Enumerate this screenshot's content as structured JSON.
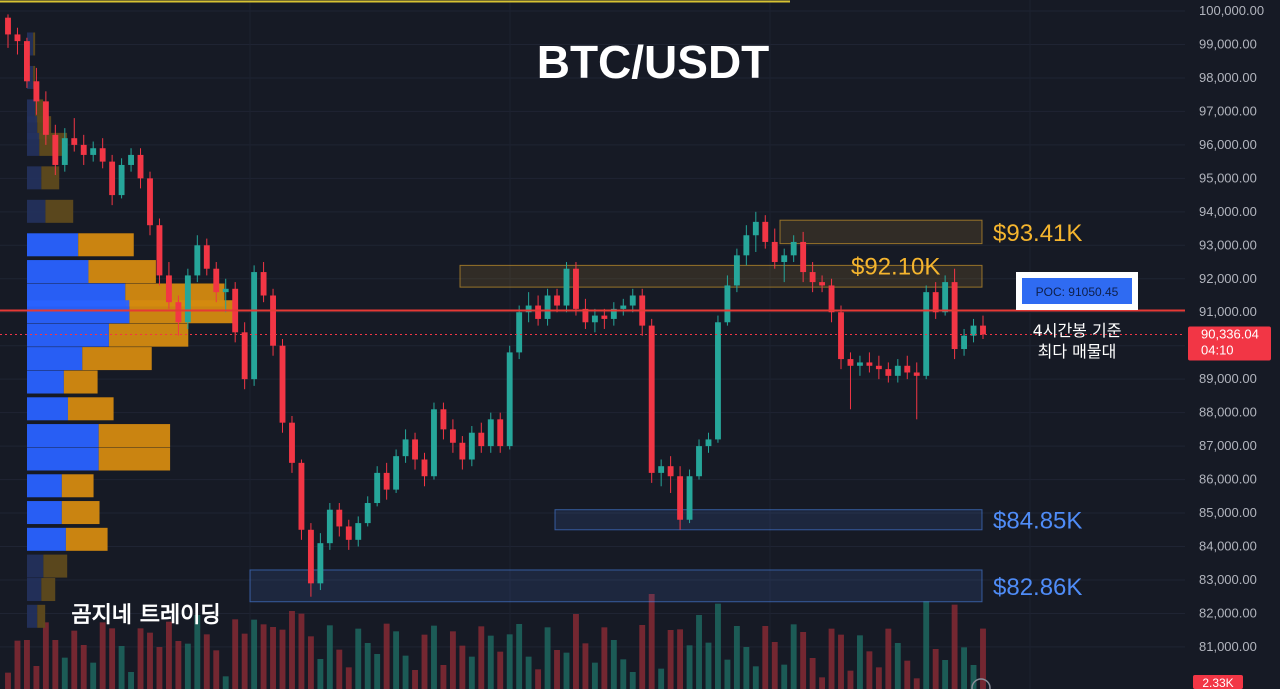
{
  "chart_data": {
    "type": "candlestick",
    "title": "BTC/USDT",
    "watermark": "곰지네 트레이딩",
    "ylim": [
      80000,
      100000
    ],
    "y_ticks": [
      100000,
      99000,
      98000,
      97000,
      96000,
      95000,
      94000,
      93000,
      92000,
      91000,
      90000,
      89000,
      88000,
      87000,
      86000,
      85000,
      84000,
      83000,
      82000,
      81000
    ],
    "y_tick_labels": [
      "100,000.00",
      "99,000.00",
      "98,000.00",
      "97,000.00",
      "96,000.00",
      "95,000.00",
      "94,000.00",
      "93,000.00",
      "92,000.00",
      "91,000.00",
      "90,000.00",
      "89,000.00",
      "88,000.00",
      "87,000.00",
      "86,000.00",
      "85,000.00",
      "84,000.00",
      "83,000.00",
      "82,000.00",
      "81,000.00"
    ],
    "price_tag": {
      "price": "90,336.04",
      "countdown": "04:10",
      "value": 90336.04
    },
    "volume_tag": "2.33K",
    "poc": {
      "label": "POC: 91050.45",
      "value": 91050.45,
      "note_line1": "4시간봉 기준",
      "note_line2": "최다 매물대"
    },
    "zones": [
      {
        "label": "$93.41K",
        "top": 93750,
        "bottom": 93050,
        "color": "#f5b52e",
        "start": 0.77
      },
      {
        "label": "$92.10K",
        "top": 92400,
        "bottom": 91750,
        "color": "#f5b52e",
        "start": 0.45
      },
      {
        "label": "$84.85K",
        "top": 85100,
        "bottom": 84500,
        "color": "#4f8cf7",
        "start": 0.545
      },
      {
        "label": "$82.86K",
        "top": 83300,
        "bottom": 82350,
        "color": "#4f8cf7",
        "start": 0.24
      }
    ],
    "volume_profile": [
      {
        "price": 99000,
        "buy": 0.03,
        "sell": 0.01
      },
      {
        "price": 98000,
        "buy": 0.03,
        "sell": 0.01
      },
      {
        "price": 97000,
        "buy": 0.04,
        "sell": 0.04
      },
      {
        "price": 96500,
        "buy": 0.05,
        "sell": 0.07
      },
      {
        "price": 96000,
        "buy": 0.06,
        "sell": 0.14
      },
      {
        "price": 95000,
        "buy": 0.07,
        "sell": 0.09
      },
      {
        "price": 94000,
        "buy": 0.09,
        "sell": 0.14
      },
      {
        "price": 93000,
        "buy": 0.25,
        "sell": 0.28
      },
      {
        "price": 92200,
        "buy": 0.3,
        "sell": 0.34
      },
      {
        "price": 91500,
        "buy": 0.48,
        "sell": 0.5
      },
      {
        "price": 91000,
        "buy": 0.5,
        "sell": 0.52
      },
      {
        "price": 90300,
        "buy": 0.4,
        "sell": 0.4
      },
      {
        "price": 89600,
        "buy": 0.27,
        "sell": 0.35
      },
      {
        "price": 88900,
        "buy": 0.18,
        "sell": 0.17
      },
      {
        "price": 88100,
        "buy": 0.2,
        "sell": 0.23
      },
      {
        "price": 87300,
        "buy": 0.35,
        "sell": 0.36
      },
      {
        "price": 86600,
        "buy": 0.35,
        "sell": 0.36
      },
      {
        "price": 85800,
        "buy": 0.17,
        "sell": 0.16
      },
      {
        "price": 85000,
        "buy": 0.17,
        "sell": 0.19
      },
      {
        "price": 84200,
        "buy": 0.19,
        "sell": 0.21
      },
      {
        "price": 83400,
        "buy": 0.08,
        "sell": 0.12
      },
      {
        "price": 82700,
        "buy": 0.07,
        "sell": 0.07
      },
      {
        "price": 81900,
        "buy": 0.05,
        "sell": 0.04
      }
    ],
    "candles": [
      [
        99800,
        99900,
        98900,
        99300
      ],
      [
        99300,
        99500,
        98700,
        99100
      ],
      [
        99100,
        99200,
        97700,
        97900
      ],
      [
        97900,
        98300,
        96900,
        97300
      ],
      [
        97300,
        97600,
        96000,
        96300
      ],
      [
        96300,
        96600,
        95100,
        95400
      ],
      [
        95400,
        96500,
        95200,
        96200
      ],
      [
        96200,
        96800,
        95800,
        96000
      ],
      [
        96000,
        96300,
        95400,
        95700
      ],
      [
        95700,
        96100,
        95500,
        95900
      ],
      [
        95900,
        96200,
        95300,
        95500
      ],
      [
        95500,
        95700,
        94200,
        94500
      ],
      [
        94500,
        95600,
        94400,
        95400
      ],
      [
        95400,
        95900,
        95200,
        95700
      ],
      [
        95700,
        95900,
        94700,
        95000
      ],
      [
        95000,
        95200,
        93300,
        93600
      ],
      [
        93600,
        93800,
        91800,
        92100
      ],
      [
        92100,
        92500,
        91100,
        91300
      ],
      [
        91300,
        91500,
        90300,
        90700
      ],
      [
        90700,
        92300,
        90500,
        92100
      ],
      [
        92100,
        93300,
        91900,
        93000
      ],
      [
        93000,
        93200,
        92100,
        92300
      ],
      [
        92300,
        92500,
        91300,
        91600
      ],
      [
        91600,
        92000,
        91000,
        91700
      ],
      [
        91700,
        91900,
        90100,
        90400
      ],
      [
        90400,
        90700,
        88700,
        89000
      ],
      [
        89000,
        92400,
        88800,
        92200
      ],
      [
        92200,
        92500,
        91300,
        91500
      ],
      [
        91500,
        91700,
        89700,
        90000
      ],
      [
        90000,
        90200,
        87400,
        87700
      ],
      [
        87700,
        87900,
        86200,
        86500
      ],
      [
        86500,
        86600,
        84200,
        84500
      ],
      [
        84500,
        84700,
        82500,
        82900
      ],
      [
        82900,
        84400,
        82700,
        84100
      ],
      [
        84100,
        85300,
        83900,
        85100
      ],
      [
        85100,
        85300,
        84300,
        84600
      ],
      [
        84600,
        84800,
        83900,
        84200
      ],
      [
        84200,
        84900,
        84000,
        84700
      ],
      [
        84700,
        85500,
        84600,
        85300
      ],
      [
        85300,
        86400,
        85200,
        86200
      ],
      [
        86200,
        86500,
        85400,
        85700
      ],
      [
        85700,
        86900,
        85600,
        86700
      ],
      [
        86700,
        87500,
        86500,
        87200
      ],
      [
        87200,
        87400,
        86300,
        86600
      ],
      [
        86600,
        86800,
        85800,
        86100
      ],
      [
        86100,
        88300,
        86000,
        88100
      ],
      [
        88100,
        88300,
        87200,
        87500
      ],
      [
        87500,
        87800,
        86800,
        87100
      ],
      [
        87100,
        87300,
        86300,
        86600
      ],
      [
        86600,
        87600,
        86400,
        87400
      ],
      [
        87400,
        87700,
        86800,
        87000
      ],
      [
        87000,
        88000,
        86800,
        87800
      ],
      [
        87800,
        88000,
        86800,
        87000
      ],
      [
        87000,
        90000,
        86900,
        89800
      ],
      [
        89800,
        91200,
        89600,
        91000
      ],
      [
        91000,
        91600,
        90700,
        91200
      ],
      [
        91200,
        91500,
        90600,
        90800
      ],
      [
        90800,
        91700,
        90600,
        91500
      ],
      [
        91500,
        91700,
        91000,
        91200
      ],
      [
        91200,
        92500,
        91000,
        92300
      ],
      [
        92300,
        92500,
        90900,
        91100
      ],
      [
        91100,
        91400,
        90500,
        90700
      ],
      [
        90700,
        91100,
        90400,
        90900
      ],
      [
        90900,
        91100,
        90500,
        90800
      ],
      [
        90800,
        91300,
        90600,
        91100
      ],
      [
        91100,
        91400,
        90900,
        91200
      ],
      [
        91200,
        91700,
        91000,
        91500
      ],
      [
        91500,
        91700,
        90300,
        90600
      ],
      [
        90600,
        90800,
        85900,
        86200
      ],
      [
        86200,
        86600,
        85800,
        86400
      ],
      [
        86400,
        86700,
        85600,
        86100
      ],
      [
        86100,
        86400,
        84500,
        84800
      ],
      [
        84800,
        86300,
        84700,
        86100
      ],
      [
        86100,
        87200,
        86000,
        87000
      ],
      [
        87000,
        87400,
        86800,
        87200
      ],
      [
        87200,
        90900,
        87100,
        90700
      ],
      [
        90700,
        92100,
        90600,
        91800
      ],
      [
        91800,
        92900,
        91600,
        92700
      ],
      [
        92700,
        93600,
        92400,
        93300
      ],
      [
        93300,
        94000,
        92800,
        93700
      ],
      [
        93700,
        93900,
        92900,
        93100
      ],
      [
        93100,
        93500,
        92300,
        92500
      ],
      [
        92500,
        92900,
        91900,
        92700
      ],
      [
        92700,
        93300,
        92500,
        93100
      ],
      [
        93100,
        93400,
        91900,
        92200
      ],
      [
        92200,
        92500,
        91600,
        91900
      ],
      [
        91900,
        92100,
        91600,
        91800
      ],
      [
        91800,
        92000,
        90700,
        91000
      ],
      [
        91000,
        91200,
        89300,
        89600
      ],
      [
        89600,
        89800,
        88100,
        89400
      ],
      [
        89400,
        89700,
        89100,
        89500
      ],
      [
        89500,
        89800,
        89200,
        89400
      ],
      [
        89400,
        89700,
        89000,
        89300
      ],
      [
        89300,
        89500,
        88900,
        89100
      ],
      [
        89100,
        89600,
        88900,
        89400
      ],
      [
        89400,
        89700,
        89000,
        89200
      ],
      [
        89200,
        89500,
        87800,
        89100
      ],
      [
        89100,
        91800,
        89000,
        91600
      ],
      [
        91600,
        91900,
        90800,
        91000
      ],
      [
        91000,
        92100,
        90900,
        91900
      ],
      [
        91900,
        92300,
        89600,
        89900
      ],
      [
        89900,
        90500,
        89700,
        90300
      ],
      [
        90300,
        90800,
        90100,
        90600
      ],
      [
        90600,
        90900,
        90200,
        90336
      ]
    ]
  }
}
